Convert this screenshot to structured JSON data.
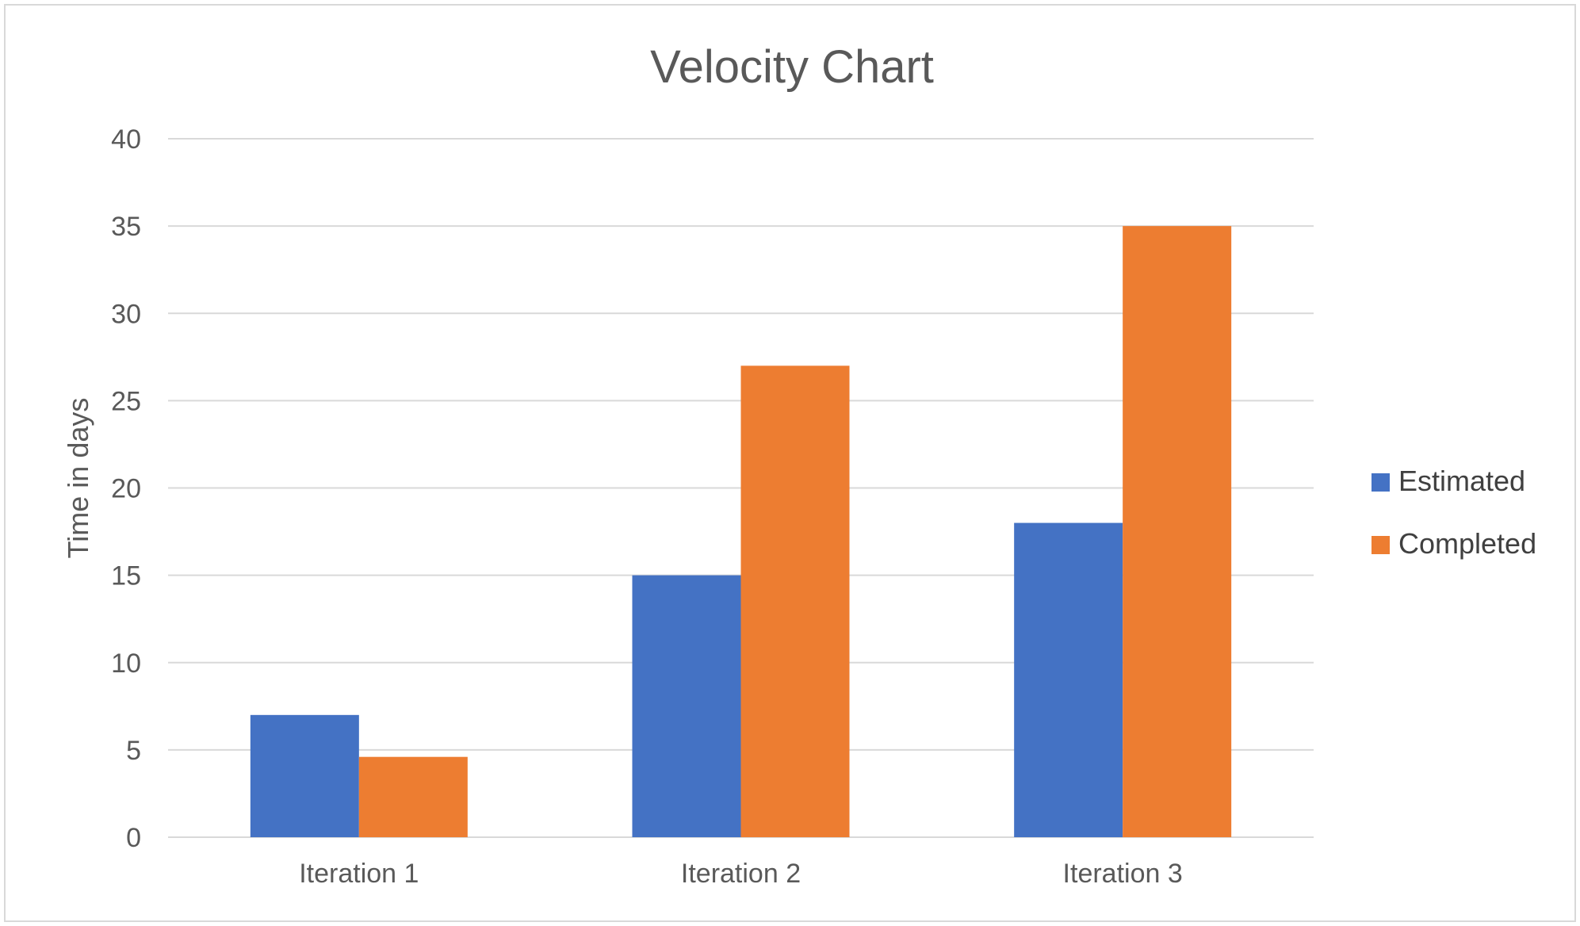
{
  "chart_data": {
    "type": "bar",
    "title": "Velocity Chart",
    "xlabel": "",
    "ylabel": "Time in days",
    "categories": [
      "Iteration 1",
      "Iteration 2",
      "Iteration 3"
    ],
    "series": [
      {
        "name": "Estimated",
        "values": [
          7,
          15,
          18
        ],
        "color": "#4472C4"
      },
      {
        "name": "Completed",
        "values": [
          4.6,
          27,
          35
        ],
        "color": "#ED7D31"
      }
    ],
    "ylim": [
      0,
      40
    ],
    "yticks": [
      "0",
      "5",
      "10",
      "15",
      "20",
      "25",
      "30",
      "35",
      "40"
    ],
    "grid": true,
    "legend_position": "right",
    "gridline_color": "#d9d9d9",
    "text_color": "#595959"
  }
}
